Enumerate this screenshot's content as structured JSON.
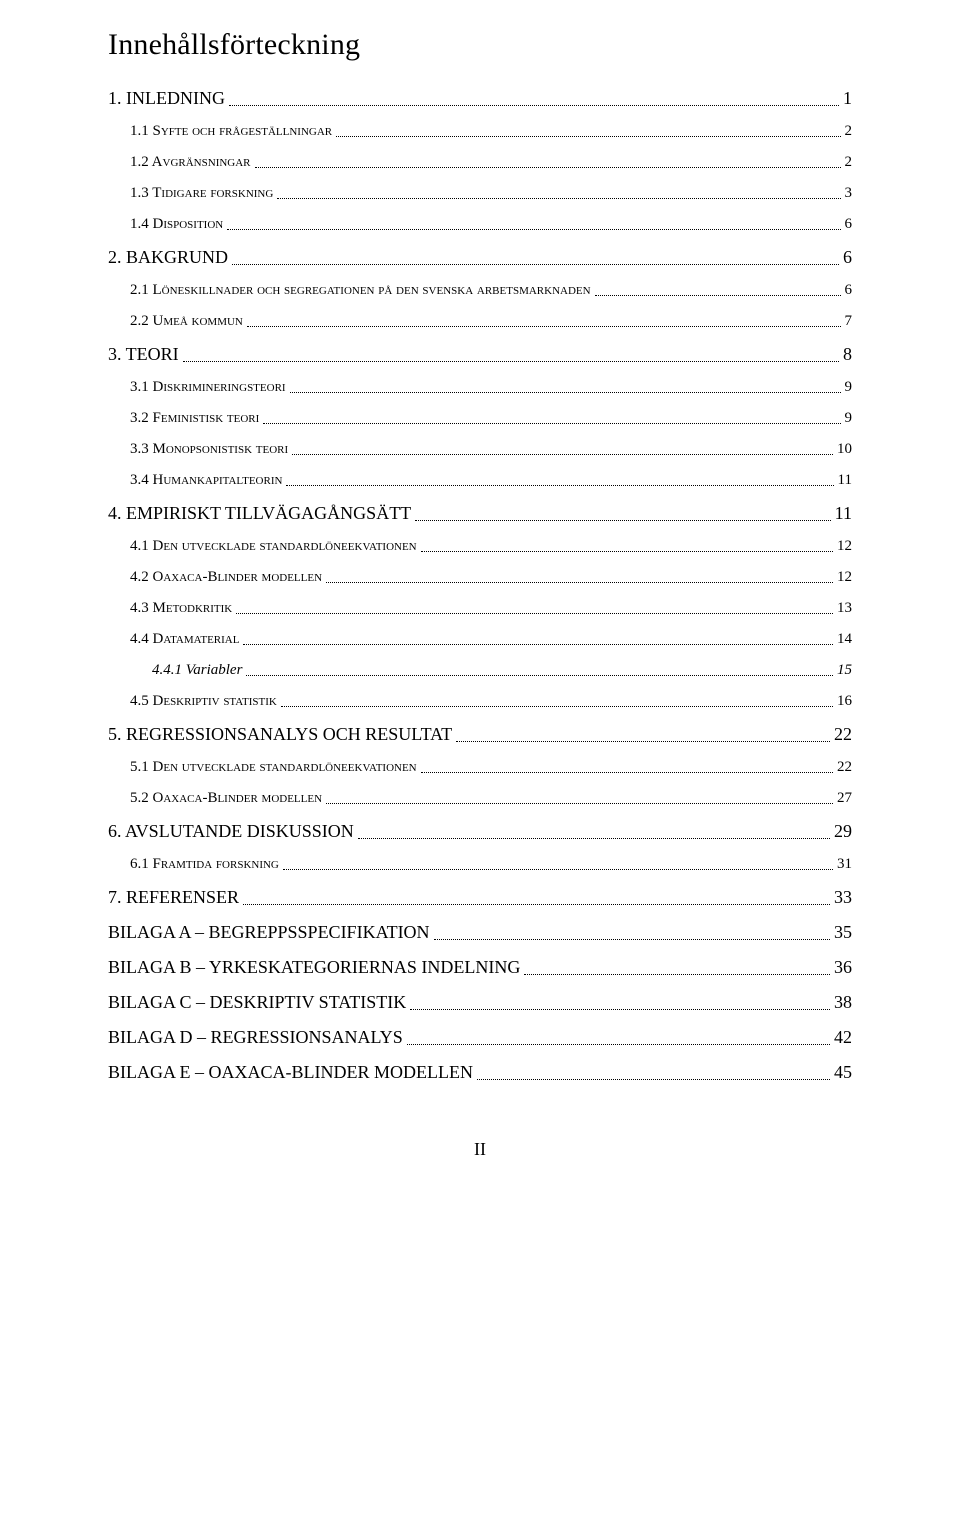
{
  "title": "Innehållsförteckning",
  "footer": "II",
  "entries": [
    {
      "level": 0,
      "label": "1. INLEDNING",
      "page": "1"
    },
    {
      "level": 1,
      "sc": true,
      "prefix": "1.1 S",
      "rest": "yfte och frågeställningar",
      "page": "2"
    },
    {
      "level": 1,
      "sc": true,
      "prefix": "1.2 A",
      "rest": "vgränsningar",
      "page": "2"
    },
    {
      "level": 1,
      "sc": true,
      "prefix": "1.3 T",
      "rest": "idigare forskning",
      "page": "3"
    },
    {
      "level": 1,
      "sc": true,
      "prefix": "1.4 D",
      "rest": "isposition",
      "page": "6"
    },
    {
      "level": 0,
      "label": "2. BAKGRUND",
      "page": "6",
      "gap": true
    },
    {
      "level": 1,
      "sc": true,
      "prefix": "2.1 L",
      "rest": "öneskillnader och segregationen på den svenska arbetsmarknaden",
      "page": "6"
    },
    {
      "level": 1,
      "sc": true,
      "prefix": "2.2 U",
      "rest": "meå kommun",
      "page": "7"
    },
    {
      "level": 0,
      "label": "3. TEORI",
      "page": "8",
      "gap": true
    },
    {
      "level": 1,
      "sc": true,
      "prefix": "3.1 D",
      "rest": "iskrimineringsteori",
      "page": "9"
    },
    {
      "level": 1,
      "sc": true,
      "prefix": "3.2 F",
      "rest": "eministisk teori",
      "page": "9"
    },
    {
      "level": 1,
      "sc": true,
      "prefix": "3.3 M",
      "rest": "onopsonistisk teori",
      "page": "10"
    },
    {
      "level": 1,
      "sc": true,
      "prefix": "3.4 H",
      "rest": "umankapitalteorin",
      "page": "11"
    },
    {
      "level": 0,
      "label": "4. EMPIRISKT TILLVÄGAGÅNGSÄTT",
      "page": "11",
      "gap": true
    },
    {
      "level": 1,
      "sc": true,
      "prefix": "4.1 D",
      "rest": "en utvecklade standardlöneekvationen",
      "page": "12"
    },
    {
      "level": 1,
      "sc": true,
      "prefix": "4.2 O",
      "rest": "axaca-Blinder modellen",
      "page": "12"
    },
    {
      "level": 1,
      "sc": true,
      "prefix": "4.3 M",
      "rest": "etodkritik",
      "page": "13"
    },
    {
      "level": 1,
      "sc": true,
      "prefix": "4.4 D",
      "rest": "atamaterial",
      "page": "14"
    },
    {
      "level": 2,
      "label": "4.4.1 Variabler",
      "page": "15"
    },
    {
      "level": 1,
      "sc": true,
      "prefix": "4.5 D",
      "rest": "eskriptiv statistik",
      "page": "16"
    },
    {
      "level": 0,
      "label": "5. REGRESSIONSANALYS OCH RESULTAT",
      "page": "22",
      "gap": true
    },
    {
      "level": 1,
      "sc": true,
      "prefix": "5.1 D",
      "rest": "en utvecklade standardlöneekvationen",
      "page": "22"
    },
    {
      "level": 1,
      "sc": true,
      "prefix": "5.2 O",
      "rest": "axaca-Blinder modellen",
      "page": "27"
    },
    {
      "level": 0,
      "label": "6. AVSLUTANDE DISKUSSION",
      "page": "29",
      "gap": true
    },
    {
      "level": 1,
      "sc": true,
      "prefix": "6.1 F",
      "rest": "ramtida forskning",
      "page": "31"
    },
    {
      "level": 0,
      "label": "7. REFERENSER",
      "page": "33",
      "gap": true
    },
    {
      "level": 0,
      "label": "BILAGA A – BEGREPPSSPECIFIKATION",
      "page": "35",
      "gap": true
    },
    {
      "level": 0,
      "label": "BILAGA B – YRKESKATEGORIERNAS INDELNING",
      "page": "36",
      "gap": true
    },
    {
      "level": 0,
      "label": "BILAGA C – DESKRIPTIV STATISTIK",
      "page": "38",
      "gap": true
    },
    {
      "level": 0,
      "label": "BILAGA D – REGRESSIONSANALYS",
      "page": "42",
      "gap": true
    },
    {
      "level": 0,
      "label": "BILAGA E – OAXACA-BLINDER MODELLEN",
      "page": "45",
      "gap": true
    }
  ]
}
